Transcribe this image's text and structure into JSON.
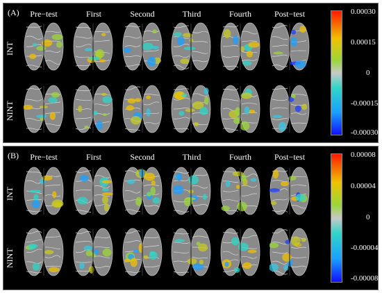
{
  "panels": [
    {
      "letter": "(A)",
      "columns": [
        "Pre−test",
        "First",
        "Second",
        "Third",
        "Fourth",
        "Post−test"
      ],
      "rows": [
        "INT",
        "NINT"
      ],
      "colorbar": {
        "ticks": [
          "0.00030",
          "0.00015",
          "0",
          "-0.00015",
          "-0.00030"
        ]
      }
    },
    {
      "letter": "(B)",
      "columns": [
        "Pre−test",
        "First",
        "Second",
        "Third",
        "Fourth",
        "Post−test"
      ],
      "rows": [
        "INT",
        "NINT"
      ],
      "colorbar": {
        "ticks": [
          "0.00008",
          "0.00004",
          "0",
          "-0.00004",
          "-0.00008"
        ]
      }
    }
  ],
  "colors": {
    "max": "#ff1a00",
    "high": "#f0c000",
    "mid_pos": "#7fd33a",
    "zero": "#c8c8c8",
    "mid_neg": "#2fd6c8",
    "low": "#1aa0ff",
    "min": "#1010ff",
    "brain": "#8a8a8a"
  }
}
